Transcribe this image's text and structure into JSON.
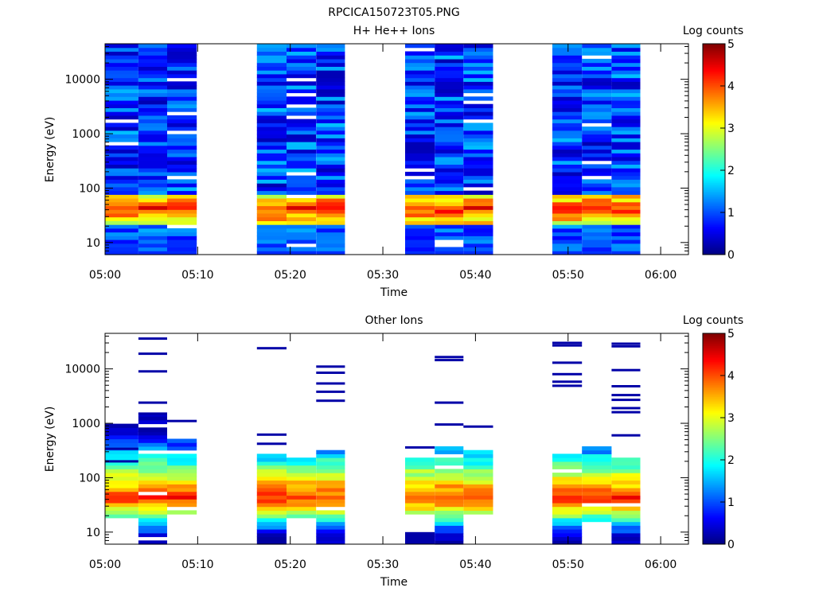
{
  "figure_title": "RPCICA150723T05.PNG",
  "chart_data": [
    {
      "type": "heatmap",
      "title": "H+ He++ Ions",
      "xlabel": "Time",
      "ylabel": "Energy (eV)",
      "y_scale": "log",
      "ylim": [
        6,
        45000
      ],
      "y_ticks": [
        {
          "value": 10,
          "label": "10"
        },
        {
          "value": 100,
          "label": "100"
        },
        {
          "value": 1000,
          "label": "1000"
        },
        {
          "value": 10000,
          "label": "10000"
        }
      ],
      "x_range": [
        "05:00",
        "06:03"
      ],
      "x_ticks": [
        "05:00",
        "05:10",
        "05:20",
        "05:30",
        "05:40",
        "05:50",
        "06:00"
      ],
      "colorbar": {
        "label": "Log counts",
        "range": [
          0,
          5
        ],
        "ticks": [
          "0",
          "1",
          "2",
          "3",
          "4",
          "5"
        ]
      },
      "columns": [
        {
          "start": "05:00.0",
          "end": "05:03.6",
          "seed": 11,
          "gaps": [
            1800,
            620
          ],
          "low_gaps": []
        },
        {
          "start": "05:03.6",
          "end": "05:06.7",
          "seed": 27,
          "gaps": [],
          "low_gaps": []
        },
        {
          "start": "05:06.7",
          "end": "05:09.9",
          "seed": 43,
          "gaps": [
            10500,
            2400,
            1000,
            170
          ],
          "low_gaps": [
            20
          ]
        },
        {
          "start": "05:16.4",
          "end": "05:19.6",
          "seed": 59,
          "gaps": [],
          "low_gaps": []
        },
        {
          "start": "05:19.6",
          "end": "05:22.8",
          "seed": 71,
          "gaps": [
            10500,
            5000,
            3000,
            2000,
            180,
            75
          ],
          "low_gaps": [
            9
          ]
        },
        {
          "start": "05:22.8",
          "end": "05:25.9",
          "seed": 83,
          "gaps": [],
          "low_gaps": []
        },
        {
          "start": "05:32.4",
          "end": "05:35.6",
          "seed": 97,
          "gaps": [
            37000,
            220,
            160
          ],
          "low_gaps": []
        },
        {
          "start": "05:35.6",
          "end": "05:38.7",
          "seed": 101,
          "gaps": [],
          "low_gaps": [
            11,
            9
          ]
        },
        {
          "start": "05:38.7",
          "end": "05:41.9",
          "seed": 113,
          "gaps": [
            5200,
            3700,
            1600,
            98
          ],
          "low_gaps": []
        },
        {
          "start": "05:48.3",
          "end": "05:51.5",
          "seed": 127,
          "gaps": [],
          "low_gaps": []
        },
        {
          "start": "05:51.5",
          "end": "05:54.7",
          "seed": 131,
          "gaps": [
            27000,
            1400,
            300,
            160
          ],
          "low_gaps": []
        },
        {
          "start": "05:54.7",
          "end": "05:57.8",
          "seed": 149,
          "gaps": [],
          "low_gaps": []
        }
      ]
    },
    {
      "type": "heatmap",
      "title": "Other Ions",
      "xlabel": "Time",
      "ylabel": "Energy (eV)",
      "y_scale": "log",
      "ylim": [
        6,
        45000
      ],
      "y_ticks": [
        {
          "value": 10,
          "label": "10"
        },
        {
          "value": 100,
          "label": "100"
        },
        {
          "value": 1000,
          "label": "1000"
        },
        {
          "value": 10000,
          "label": "10000"
        }
      ],
      "x_range": [
        "05:00",
        "06:03"
      ],
      "x_ticks": [
        "05:00",
        "05:10",
        "05:20",
        "05:30",
        "05:40",
        "05:50",
        "06:00"
      ],
      "colorbar": {
        "label": "Log counts",
        "range": [
          0,
          5
        ],
        "ticks": [
          "0",
          "1",
          "2",
          "3",
          "4",
          "5"
        ]
      },
      "columns": [
        {
          "start": "05:00.0",
          "end": "05:03.6",
          "top": 950,
          "bottom": 17,
          "seed": 211,
          "lines": [
            340,
            200
          ]
        },
        {
          "start": "05:03.6",
          "end": "05:06.7",
          "top": 1700,
          "bottom": 6,
          "seed": 223,
          "lines": [
            36000,
            19000,
            9000,
            2400,
            1500,
            720
          ]
        },
        {
          "start": "05:06.7",
          "end": "05:09.9",
          "top": 480,
          "bottom": 20,
          "seed": 227,
          "lines": [
            1100
          ]
        },
        {
          "start": "05:16.4",
          "end": "05:19.6",
          "top": 320,
          "bottom": 6,
          "seed": 229,
          "lines": [
            24000,
            620,
            420
          ]
        },
        {
          "start": "05:19.6",
          "end": "05:22.8",
          "top": 230,
          "bottom": 17,
          "seed": 233,
          "lines": []
        },
        {
          "start": "05:22.8",
          "end": "05:25.9",
          "top": 300,
          "bottom": 6,
          "seed": 239,
          "lines": [
            11000,
            8500,
            5400,
            3800,
            2600
          ]
        },
        {
          "start": "05:32.4",
          "end": "05:35.6",
          "top": 240,
          "bottom": 22,
          "seed": 241,
          "lines": [
            360
          ],
          "extra": [
            {
              "top": 10,
              "bottom": 6
            }
          ]
        },
        {
          "start": "05:35.6",
          "end": "05:38.7",
          "top": 410,
          "bottom": 6,
          "seed": 251,
          "lines": [
            16500,
            14500,
            2400,
            950
          ]
        },
        {
          "start": "05:38.7",
          "end": "05:41.9",
          "top": 310,
          "bottom": 22,
          "seed": 257,
          "lines": [
            870
          ]
        },
        {
          "start": "05:48.3",
          "end": "05:51.5",
          "top": 290,
          "bottom": 6,
          "seed": 263,
          "lines": [
            30000,
            27000,
            13000,
            8000,
            5800,
            4900
          ]
        },
        {
          "start": "05:51.5",
          "end": "05:54.7",
          "top": 400,
          "bottom": 15,
          "seed": 269,
          "lines": []
        },
        {
          "start": "05:54.7",
          "end": "05:57.8",
          "top": 280,
          "bottom": 6,
          "seed": 271,
          "lines": [
            29000,
            26000,
            9500,
            4800,
            3300,
            2700,
            1900,
            1600,
            600
          ]
        }
      ]
    }
  ]
}
